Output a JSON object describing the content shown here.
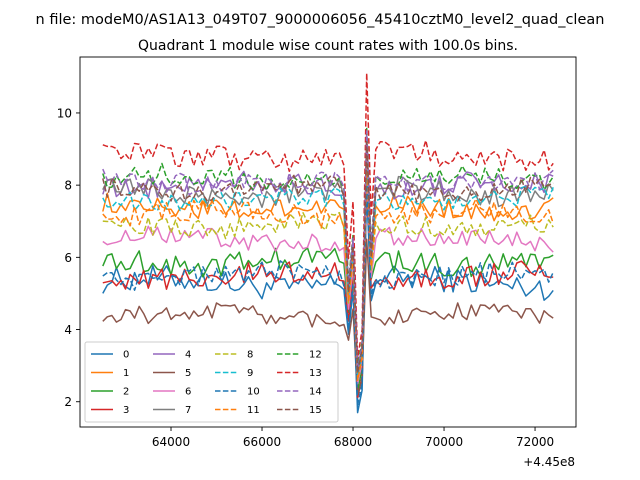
{
  "figure": {
    "suptitle": "n file: modeM0/AS1A13_049T07_9000006056_45410cztM0_level2_quad_clean",
    "offset_text": "+4.45e8"
  },
  "chart_data": {
    "type": "line",
    "title": "Quadrant 1 module wise count rates with 100.0s bins.",
    "xlabel": "",
    "ylabel": "",
    "xlim": [
      62000,
      72900
    ],
    "ylim": [
      1.3,
      11.55
    ],
    "x_ticks": [
      64000,
      66000,
      68000,
      70000,
      72000
    ],
    "x_tick_labels": [
      "64000",
      "66000",
      "68000",
      "70000",
      "72000"
    ],
    "y_ticks": [
      2,
      4,
      6,
      8,
      10
    ],
    "y_tick_labels": [
      "2",
      "4",
      "6",
      "8",
      "10"
    ],
    "x_start": 62500,
    "x_step": 100,
    "x_end": 72400,
    "grid": false,
    "legend": {
      "placement": "lower-left",
      "columns": 4
    },
    "dip": {
      "x": [
        67900,
        68000,
        68100,
        68200,
        68300,
        68400
      ],
      "shape": [
        0.35,
        0.55,
        0.0,
        0.1,
        1.0,
        0.5
      ]
    },
    "series": [
      {
        "name": "0",
        "color": "#1f77b4",
        "dash": "solid",
        "level": 5.3,
        "noise": 0.35,
        "dip_min": 1.7,
        "peak": 7.9
      },
      {
        "name": "1",
        "color": "#ff7f0e",
        "dash": "solid",
        "level": 7.4,
        "noise": 0.28,
        "dip_min": 2.6,
        "peak": 9.0
      },
      {
        "name": "2",
        "color": "#2ca02c",
        "dash": "solid",
        "level": 5.9,
        "noise": 0.32,
        "dip_min": 2.3,
        "peak": 8.5
      },
      {
        "name": "3",
        "color": "#d62728",
        "dash": "solid",
        "level": 5.5,
        "noise": 0.3,
        "dip_min": 2.1,
        "peak": 8.2
      },
      {
        "name": "4",
        "color": "#9467bd",
        "dash": "solid",
        "level": 8.0,
        "noise": 0.3,
        "dip_min": 2.9,
        "peak": 9.4
      },
      {
        "name": "5",
        "color": "#8c564b",
        "dash": "solid",
        "level": 4.4,
        "noise": 0.25,
        "dip_min": 2.2,
        "peak": 6.5
      },
      {
        "name": "6",
        "color": "#e377c2",
        "dash": "solid",
        "level": 6.5,
        "noise": 0.28,
        "dip_min": 2.5,
        "peak": 8.4
      },
      {
        "name": "7",
        "color": "#7f7f7f",
        "dash": "solid",
        "level": 7.8,
        "noise": 0.32,
        "dip_min": 2.8,
        "peak": 9.3
      },
      {
        "name": "8",
        "color": "#bcbd22",
        "dash": "dashed",
        "level": 6.9,
        "noise": 0.28,
        "dip_min": 2.6,
        "peak": 8.7
      },
      {
        "name": "9",
        "color": "#17becf",
        "dash": "dashed",
        "level": 7.6,
        "noise": 0.28,
        "dip_min": 2.7,
        "peak": 9.0
      },
      {
        "name": "10",
        "color": "#1f77b4",
        "dash": "dashed",
        "level": 5.5,
        "noise": 0.3,
        "dip_min": 1.9,
        "peak": 8.0
      },
      {
        "name": "11",
        "color": "#ff7f0e",
        "dash": "dashed",
        "level": 7.2,
        "noise": 0.3,
        "dip_min": 2.6,
        "peak": 8.9
      },
      {
        "name": "12",
        "color": "#2ca02c",
        "dash": "dashed",
        "level": 8.2,
        "noise": 0.3,
        "dip_min": 3.0,
        "peak": 9.6
      },
      {
        "name": "13",
        "color": "#d62728",
        "dash": "dashed",
        "level": 8.8,
        "noise": 0.35,
        "dip_min": 3.2,
        "peak": 11.1
      },
      {
        "name": "14",
        "color": "#9467bd",
        "dash": "dashed",
        "level": 8.1,
        "noise": 0.3,
        "dip_min": 2.9,
        "peak": 9.5
      },
      {
        "name": "15",
        "color": "#8c564b",
        "dash": "dashed",
        "level": 7.9,
        "noise": 0.28,
        "dip_min": 2.8,
        "peak": 9.2
      }
    ]
  }
}
